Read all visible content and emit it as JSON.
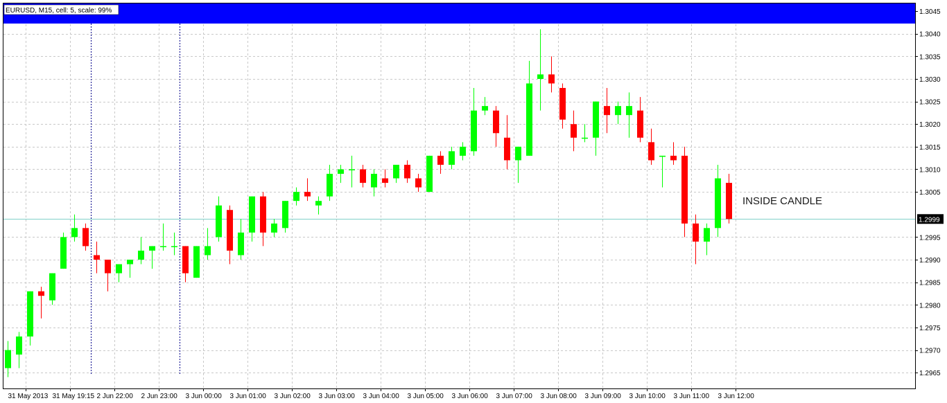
{
  "window": {
    "header_label": "EURUSD, M15, cell: 5, scale: 99%"
  },
  "colors": {
    "background": "#ffffff",
    "grid": "#c8c8c8",
    "bull": "#00ff00",
    "bear": "#ff0000",
    "bid_line": "#7fd0c8",
    "blue_band": "#0000ff",
    "session_separator": "#00008b"
  },
  "chart_data": {
    "type": "candlestick",
    "symbol": "EURUSD",
    "timeframe": "M15",
    "ylim": [
      1.29615,
      1.30467
    ],
    "y_ticks": [
      "1.3045",
      "1.3040",
      "1.3035",
      "1.3030",
      "1.3025",
      "1.3020",
      "1.3015",
      "1.3010",
      "1.3005",
      "1.2999",
      "1.2995",
      "1.2990",
      "1.2985",
      "1.2980",
      "1.2975",
      "1.2970",
      "1.2965"
    ],
    "x_labels": [
      "31 May 2013",
      "31 May 19:15",
      "2 Jun 22:00",
      "2 Jun 23:00",
      "3 Jun 00:00",
      "3 Jun 01:00",
      "3 Jun 02:00",
      "3 Jun 03:00",
      "3 Jun 04:00",
      "3 Jun 05:00",
      "3 Jun 06:00",
      "3 Jun 07:00",
      "3 Jun 08:00",
      "3 Jun 09:00",
      "3 Jun 10:00",
      "3 Jun 11:00",
      "3 Jun 12:00"
    ],
    "current_price": "1.2999",
    "annotations": [
      {
        "text": "INSIDE CANDLE"
      }
    ],
    "session_separators_after_bar": [
      8,
      16
    ],
    "candles": [
      {
        "o": 1.2966,
        "h": 1.2972,
        "l": 1.2964,
        "c": 1.297
      },
      {
        "o": 1.2969,
        "h": 1.2974,
        "l": 1.2966,
        "c": 1.2973
      },
      {
        "o": 1.2973,
        "h": 1.2983,
        "l": 1.2971,
        "c": 1.2983
      },
      {
        "o": 1.2983,
        "h": 1.2984,
        "l": 1.2977,
        "c": 1.2982
      },
      {
        "o": 1.2981,
        "h": 1.2987,
        "l": 1.298,
        "c": 1.2987
      },
      {
        "o": 1.2988,
        "h": 1.2996,
        "l": 1.2988,
        "c": 1.2995
      },
      {
        "o": 1.2995,
        "h": 1.3,
        "l": 1.2994,
        "c": 1.2997
      },
      {
        "o": 1.2997,
        "h": 1.2998,
        "l": 1.2992,
        "c": 1.2993
      },
      {
        "o": 1.2991,
        "h": 1.2994,
        "l": 1.2987,
        "c": 1.299
      },
      {
        "o": 1.299,
        "h": 1.299,
        "l": 1.2983,
        "c": 1.2987
      },
      {
        "o": 1.2987,
        "h": 1.2989,
        "l": 1.2985,
        "c": 1.2989
      },
      {
        "o": 1.2989,
        "h": 1.299,
        "l": 1.2986,
        "c": 1.299
      },
      {
        "o": 1.299,
        "h": 1.2995,
        "l": 1.2989,
        "c": 1.2992
      },
      {
        "o": 1.2992,
        "h": 1.2993,
        "l": 1.2988,
        "c": 1.2993
      },
      {
        "o": 1.2993,
        "h": 1.2998,
        "l": 1.2992,
        "c": 1.2993
      },
      {
        "o": 1.2993,
        "h": 1.2996,
        "l": 1.2991,
        "c": 1.2993
      },
      {
        "o": 1.2993,
        "h": 1.2993,
        "l": 1.2985,
        "c": 1.2987
      },
      {
        "o": 1.2986,
        "h": 1.2993,
        "l": 1.2986,
        "c": 1.2993
      },
      {
        "o": 1.2991,
        "h": 1.2997,
        "l": 1.299,
        "c": 1.2993
      },
      {
        "o": 1.2995,
        "h": 1.3004,
        "l": 1.2994,
        "c": 1.3002
      },
      {
        "o": 1.3001,
        "h": 1.3002,
        "l": 1.2989,
        "c": 1.2992
      },
      {
        "o": 1.2991,
        "h": 1.2999,
        "l": 1.299,
        "c": 1.2996
      },
      {
        "o": 1.2996,
        "h": 1.3004,
        "l": 1.2994,
        "c": 1.3004
      },
      {
        "o": 1.3004,
        "h": 1.3005,
        "l": 1.2993,
        "c": 1.2996
      },
      {
        "o": 1.2996,
        "h": 1.2999,
        "l": 1.2995,
        "c": 1.2998
      },
      {
        "o": 1.2997,
        "h": 1.3003,
        "l": 1.2996,
        "c": 1.3003
      },
      {
        "o": 1.3003,
        "h": 1.3006,
        "l": 1.3002,
        "c": 1.3005
      },
      {
        "o": 1.3005,
        "h": 1.3008,
        "l": 1.3003,
        "c": 1.3004
      },
      {
        "o": 1.3002,
        "h": 1.3004,
        "l": 1.3,
        "c": 1.3003
      },
      {
        "o": 1.3004,
        "h": 1.3011,
        "l": 1.3003,
        "c": 1.3009
      },
      {
        "o": 1.3009,
        "h": 1.3011,
        "l": 1.3007,
        "c": 1.301
      },
      {
        "o": 1.301,
        "h": 1.3013,
        "l": 1.3006,
        "c": 1.301
      },
      {
        "o": 1.301,
        "h": 1.3011,
        "l": 1.3006,
        "c": 1.3007
      },
      {
        "o": 1.3006,
        "h": 1.301,
        "l": 1.3004,
        "c": 1.3009
      },
      {
        "o": 1.3008,
        "h": 1.301,
        "l": 1.3006,
        "c": 1.3007
      },
      {
        "o": 1.3008,
        "h": 1.3011,
        "l": 1.3007,
        "c": 1.3011
      },
      {
        "o": 1.3011,
        "h": 1.3012,
        "l": 1.3007,
        "c": 1.3008
      },
      {
        "o": 1.3008,
        "h": 1.3009,
        "l": 1.3005,
        "c": 1.3006
      },
      {
        "o": 1.3005,
        "h": 1.3013,
        "l": 1.3005,
        "c": 1.3013
      },
      {
        "o": 1.3013,
        "h": 1.3014,
        "l": 1.3009,
        "c": 1.3011
      },
      {
        "o": 1.3011,
        "h": 1.3015,
        "l": 1.301,
        "c": 1.3014
      },
      {
        "o": 1.3013,
        "h": 1.3016,
        "l": 1.3012,
        "c": 1.3015
      },
      {
        "o": 1.3014,
        "h": 1.3028,
        "l": 1.3013,
        "c": 1.3023
      },
      {
        "o": 1.3023,
        "h": 1.3026,
        "l": 1.3022,
        "c": 1.3024
      },
      {
        "o": 1.3023,
        "h": 1.3024,
        "l": 1.3015,
        "c": 1.3018
      },
      {
        "o": 1.3017,
        "h": 1.3022,
        "l": 1.301,
        "c": 1.3012
      },
      {
        "o": 1.3012,
        "h": 1.3015,
        "l": 1.3007,
        "c": 1.3015
      },
      {
        "o": 1.3013,
        "h": 1.3034,
        "l": 1.3013,
        "c": 1.3029
      },
      {
        "o": 1.303,
        "h": 1.3041,
        "l": 1.3023,
        "c": 1.3031
      },
      {
        "o": 1.3031,
        "h": 1.3035,
        "l": 1.3027,
        "c": 1.3029
      },
      {
        "o": 1.3028,
        "h": 1.3029,
        "l": 1.3019,
        "c": 1.3021
      },
      {
        "o": 1.302,
        "h": 1.3023,
        "l": 1.3014,
        "c": 1.3017
      },
      {
        "o": 1.3017,
        "h": 1.302,
        "l": 1.3016,
        "c": 1.3017
      },
      {
        "o": 1.3017,
        "h": 1.3025,
        "l": 1.3013,
        "c": 1.3025
      },
      {
        "o": 1.3024,
        "h": 1.3028,
        "l": 1.3018,
        "c": 1.3022
      },
      {
        "o": 1.3022,
        "h": 1.3025,
        "l": 1.302,
        "c": 1.3024
      },
      {
        "o": 1.3022,
        "h": 1.3027,
        "l": 1.3017,
        "c": 1.3024
      },
      {
        "o": 1.3023,
        "h": 1.3026,
        "l": 1.3016,
        "c": 1.3017
      },
      {
        "o": 1.3016,
        "h": 1.3019,
        "l": 1.3011,
        "c": 1.3012
      },
      {
        "o": 1.3013,
        "h": 1.3013,
        "l": 1.3006,
        "c": 1.3013
      },
      {
        "o": 1.3013,
        "h": 1.3016,
        "l": 1.3011,
        "c": 1.3012
      },
      {
        "o": 1.3013,
        "h": 1.3015,
        "l": 1.2995,
        "c": 1.2998
      },
      {
        "o": 1.2998,
        "h": 1.3,
        "l": 1.2989,
        "c": 1.2994
      },
      {
        "o": 1.2994,
        "h": 1.2998,
        "l": 1.2991,
        "c": 1.2997
      },
      {
        "o": 1.2997,
        "h": 1.3011,
        "l": 1.2995,
        "c": 1.3008
      },
      {
        "o": 1.3007,
        "h": 1.3009,
        "l": 1.2998,
        "c": 1.2999
      }
    ]
  }
}
